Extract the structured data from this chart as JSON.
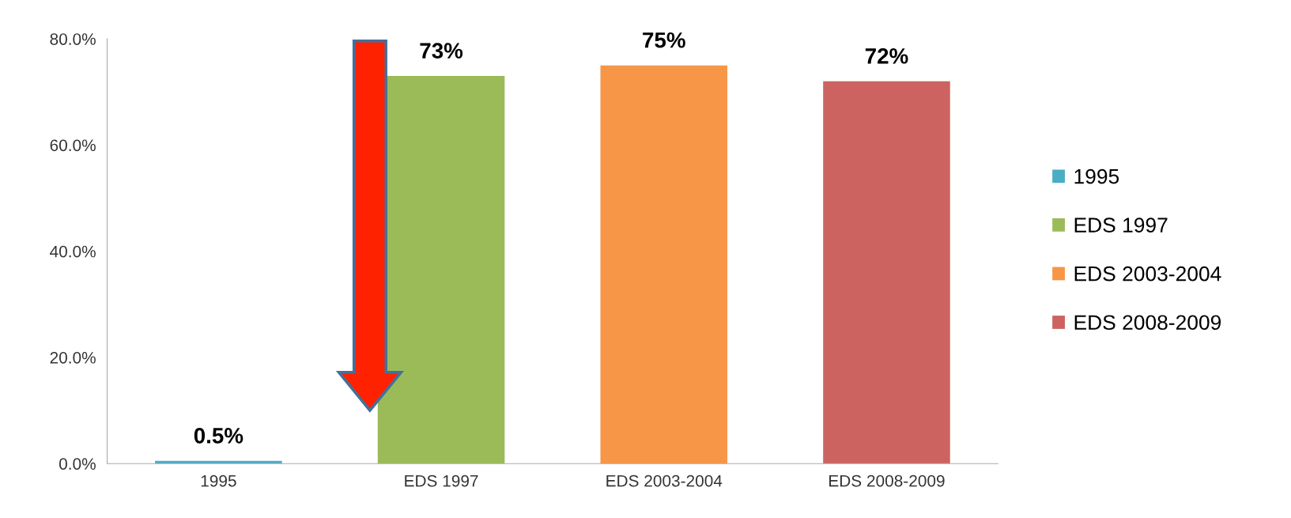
{
  "chart_data": {
    "type": "bar",
    "categories": [
      "1995",
      "EDS 1997",
      "EDS 2003-2004",
      "EDS 2008-2009"
    ],
    "series": [
      {
        "name": "1995",
        "color": "#4bacc6",
        "values": [
          0.5,
          null,
          null,
          null
        ],
        "value_labels": [
          "0.5%",
          null,
          null,
          null
        ]
      },
      {
        "name": "EDS 1997",
        "color": "#9bbb59",
        "values": [
          null,
          73,
          null,
          null
        ],
        "value_labels": [
          null,
          "73%",
          null,
          null
        ]
      },
      {
        "name": "EDS 2003-2004",
        "color": "#f79646",
        "values": [
          null,
          null,
          75,
          null
        ],
        "value_labels": [
          null,
          null,
          "75%",
          null
        ]
      },
      {
        "name": "EDS 2008-2009",
        "color": "#cc6360",
        "values": [
          null,
          null,
          null,
          72
        ],
        "value_labels": [
          null,
          null,
          null,
          "72%"
        ]
      }
    ],
    "ylim": [
      0,
      80
    ],
    "yticks": [
      {
        "value": 0,
        "label": "0.0%"
      },
      {
        "value": 20,
        "label": "20.0%"
      },
      {
        "value": 40,
        "label": "40.0%"
      },
      {
        "value": 60,
        "label": "60.0%"
      },
      {
        "value": 80,
        "label": "80.0%"
      }
    ],
    "grid": false,
    "legend": "right"
  }
}
